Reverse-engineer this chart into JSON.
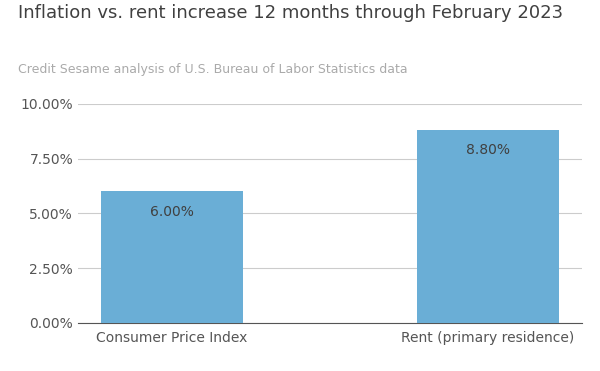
{
  "title": "Inflation vs. rent increase 12 months through February 2023",
  "subtitle": "Credit Sesame analysis of U.S. Bureau of Labor Statistics data",
  "categories": [
    "Consumer Price Index",
    "Rent (primary residence)"
  ],
  "values": [
    0.06,
    0.088
  ],
  "labels": [
    "6.00%",
    "8.80%"
  ],
  "bar_color": "#6aaed6",
  "title_fontsize": 13,
  "subtitle_fontsize": 9,
  "label_fontsize": 10,
  "tick_fontsize": 10,
  "xtick_fontsize": 10,
  "ylim": [
    0,
    0.1
  ],
  "yticks": [
    0.0,
    0.025,
    0.05,
    0.075,
    0.1
  ],
  "background_color": "#ffffff",
  "grid_color": "#cccccc",
  "title_color": "#404040",
  "subtitle_color": "#aaaaaa",
  "tick_color": "#555555",
  "label_color": "#404040",
  "bar_width": 0.45
}
